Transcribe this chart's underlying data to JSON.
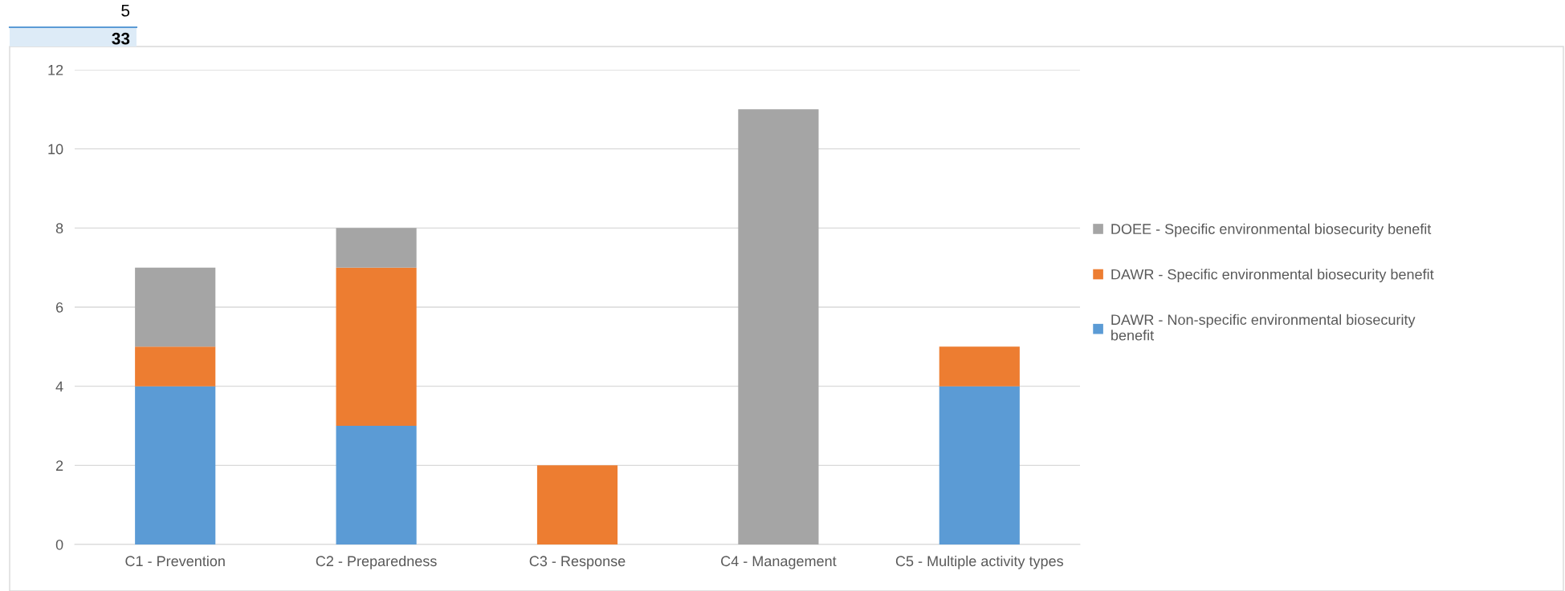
{
  "chart_data": {
    "type": "bar",
    "stacked": true,
    "categories": [
      "C1 - Prevention",
      "C2 - Preparedness",
      "C3 - Response",
      "C4 - Management",
      "C5 - Multiple activity types"
    ],
    "series": [
      {
        "name": "DAWR - Non-specific environmental biosecurity benefit",
        "color": "#5b9bd5",
        "values": [
          4,
          3,
          0,
          0,
          4
        ]
      },
      {
        "name": "DAWR - Specific environmental biosecurity benefit",
        "color": "#ed7d31",
        "values": [
          1,
          4,
          2,
          0,
          1
        ]
      },
      {
        "name": "DOEE - Specific environmental biosecurity benefit",
        "color": "#a5a5a5",
        "values": [
          2,
          1,
          0,
          11,
          0
        ]
      }
    ],
    "ylim": [
      0,
      12
    ],
    "yticks": [
      0,
      2,
      4,
      6,
      8,
      10,
      12
    ],
    "grid": "y",
    "legend": "right",
    "annotations": [
      "5",
      "33"
    ]
  }
}
